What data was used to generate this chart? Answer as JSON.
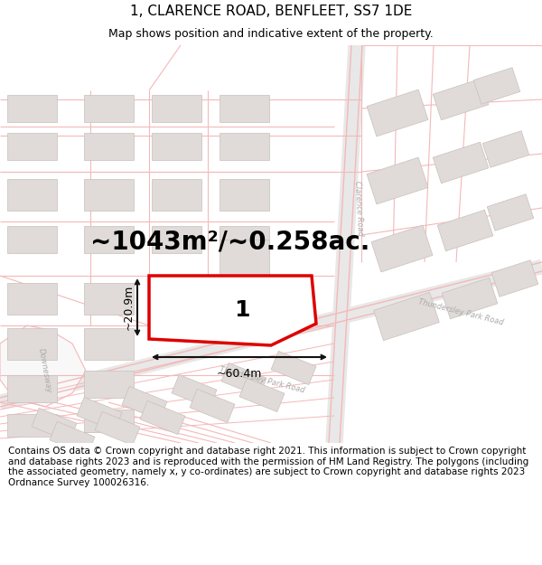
{
  "title": "1, CLARENCE ROAD, BENFLEET, SS7 1DE",
  "subtitle": "Map shows position and indicative extent of the property.",
  "footer": "Contains OS data © Crown copyright and database right 2021. This information is subject to Crown copyright and database rights 2023 and is reproduced with the permission of HM Land Registry. The polygons (including the associated geometry, namely x, y co-ordinates) are subject to Crown copyright and database rights 2023 Ordnance Survey 100026316.",
  "area_label": "~1043m²/~0.258ac.",
  "width_label": "~60.4m",
  "height_label": "~20.9m",
  "plot_number": "1",
  "map_bg": "#ffffff",
  "road_outline_color": "#f5b8b8",
  "road_fill_color": "#ffffff",
  "building_fill": "#e0dbd8",
  "building_edge": "#c8c0bc",
  "highlight_edge": "#dd0000",
  "highlight_fill": "#ffffff",
  "dim_color": "#111111",
  "title_fontsize": 11,
  "subtitle_fontsize": 9,
  "footer_fontsize": 7.5,
  "area_fontsize": 20,
  "label_fontsize": 9,
  "plot_label_fontsize": 18,
  "road_label_color": "#aaaaaa",
  "road_label_fontsize": 6
}
